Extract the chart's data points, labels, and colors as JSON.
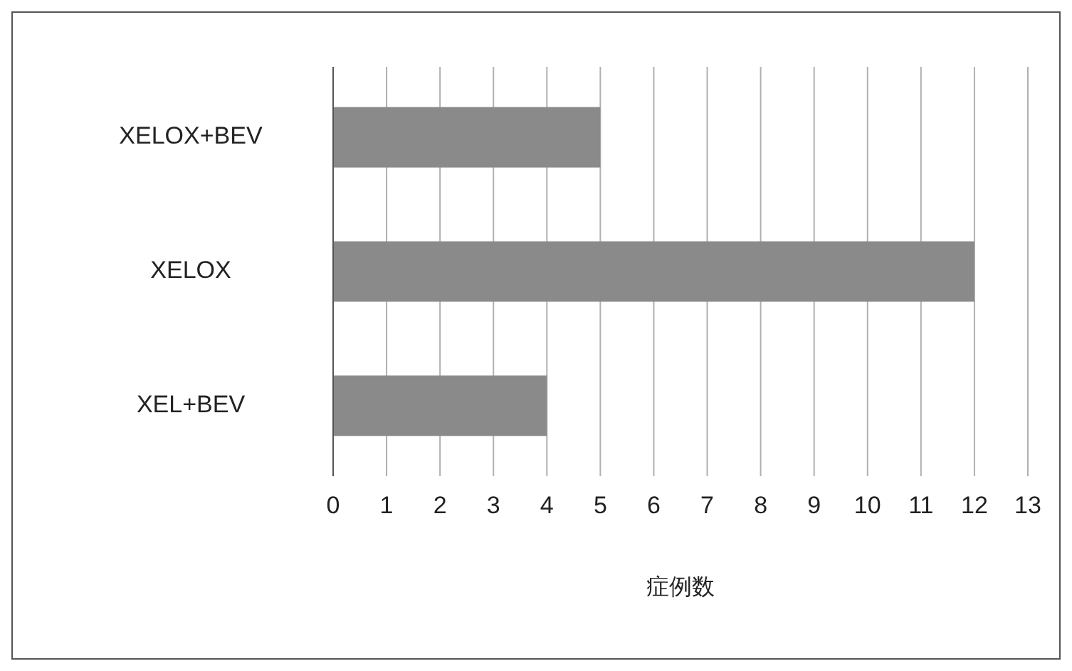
{
  "chart_data": {
    "type": "bar",
    "orientation": "horizontal",
    "categories": [
      "XELOX+BEV",
      "XELOX",
      "XEL+BEV"
    ],
    "values": [
      5,
      12,
      4
    ],
    "color": "#8a8a8a",
    "xlim": [
      0,
      13
    ],
    "xticks": [
      0,
      1,
      2,
      3,
      4,
      5,
      6,
      7,
      8,
      9,
      10,
      11,
      12,
      13
    ],
    "xlabel": "症例数",
    "grid": "x"
  }
}
